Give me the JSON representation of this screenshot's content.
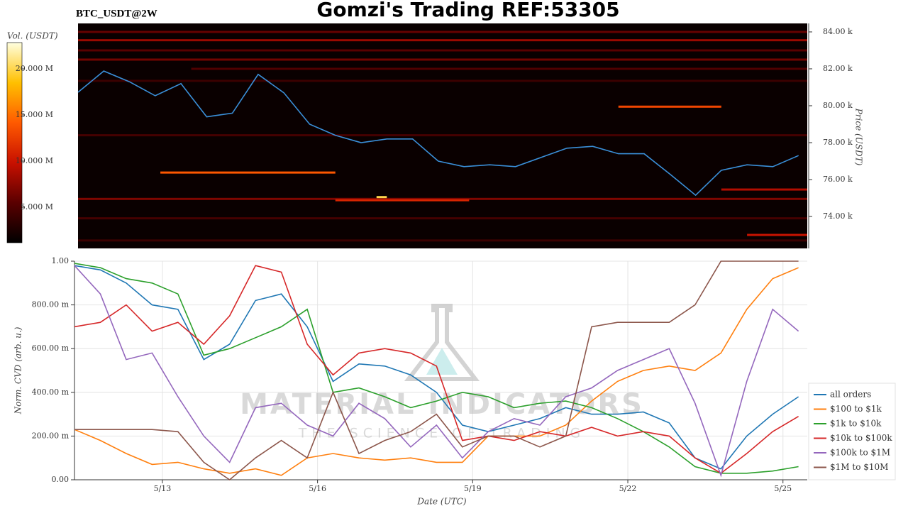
{
  "chart_data": [
    {
      "type": "heatmap",
      "title": "Gomzi's Trading REF:53305",
      "symbol": "BTC_USDT@2W",
      "y_label": "Price (USDT)",
      "colorbar_label": "Vol. (USDT)",
      "xlim": [
        11.3,
        25.47
      ],
      "ylim": [
        72270,
        84460
      ],
      "yticks": [
        {
          "value": 74000,
          "label": "74.00 k"
        },
        {
          "value": 76000,
          "label": "76.00 k"
        },
        {
          "value": 78000,
          "label": "78.00 k"
        },
        {
          "value": 80000,
          "label": "80.00 k"
        },
        {
          "value": 82000,
          "label": "82.00 k"
        },
        {
          "value": 84000,
          "label": "84.00 k"
        }
      ],
      "vlim": [
        1150000,
        22850000
      ],
      "vticks": [
        {
          "value": 5000000,
          "label": "5.000 M"
        },
        {
          "value": 10000000,
          "label": "10.000 M"
        },
        {
          "value": 15000000,
          "label": "15.000 M"
        },
        {
          "value": 20000000,
          "label": "20.000 M"
        }
      ],
      "colorscale": [
        "#000000",
        "#5a0000",
        "#c81000",
        "#ff5a00",
        "#ffc000",
        "#ffffe0"
      ],
      "background": "#0a0000",
      "levels": [
        {
          "price": 84000,
          "start": 11.3,
          "end": 25.47,
          "volume": 6000000
        },
        {
          "price": 83550,
          "start": 11.3,
          "end": 25.47,
          "volume": 8000000
        },
        {
          "price": 83000,
          "start": 11.3,
          "end": 25.47,
          "volume": 5500000
        },
        {
          "price": 82500,
          "start": 11.3,
          "end": 25.47,
          "volume": 6500000
        },
        {
          "price": 82000,
          "start": 13.5,
          "end": 25.47,
          "volume": 5000000
        },
        {
          "price": 81350,
          "start": 11.3,
          "end": 25.47,
          "volume": 4000000
        },
        {
          "price": 79950,
          "start": 21.8,
          "end": 23.8,
          "volume": 13000000
        },
        {
          "price": 78400,
          "start": 11.3,
          "end": 25.47,
          "volume": 4500000
        },
        {
          "price": 76380,
          "start": 12.9,
          "end": 16.3,
          "volume": 14000000
        },
        {
          "price": 74950,
          "start": 11.3,
          "end": 25.47,
          "volume": 7000000
        },
        {
          "price": 74880,
          "start": 16.3,
          "end": 18.9,
          "volume": 11000000
        },
        {
          "price": 75460,
          "start": 23.8,
          "end": 25.47,
          "volume": 9000000
        },
        {
          "price": 73900,
          "start": 11.3,
          "end": 25.47,
          "volume": 4500000
        },
        {
          "price": 73000,
          "start": 24.3,
          "end": 25.47,
          "volume": 10000000
        },
        {
          "price": 72700,
          "start": 11.3,
          "end": 25.47,
          "volume": 4000000
        },
        {
          "price": 75050,
          "start": 17.1,
          "end": 17.3,
          "volume": 20000000
        }
      ],
      "price_line": {
        "color": "#3a8fd8",
        "x": [
          11.3,
          11.8,
          12.3,
          12.8,
          13.3,
          13.8,
          14.3,
          14.8,
          15.3,
          15.8,
          16.3,
          16.8,
          17.3,
          17.8,
          18.3,
          18.8,
          19.3,
          19.8,
          20.3,
          20.8,
          21.3,
          21.8,
          22.3,
          22.8,
          23.3,
          23.8,
          24.3,
          24.8,
          25.3
        ],
        "values": [
          80730,
          81880,
          81300,
          80540,
          81200,
          79400,
          79600,
          81700,
          80700,
          79000,
          78400,
          78000,
          78200,
          78200,
          77000,
          76700,
          76800,
          76700,
          77200,
          77700,
          77800,
          77400,
          77400,
          76300,
          75150,
          76500,
          76800,
          76700,
          77300
        ]
      }
    },
    {
      "type": "line",
      "x_label": "Date (UTC)",
      "y_label": "Norm. CVD (arb. u.)",
      "watermark": [
        "MATERIAL INDICATORS",
        "THE SCIENCE OF TRADING"
      ],
      "xlim": [
        11.3,
        25.47
      ],
      "xticks": [
        {
          "value": 13,
          "label": "5/13"
        },
        {
          "value": 16,
          "label": "5/16"
        },
        {
          "value": 19,
          "label": "5/19"
        },
        {
          "value": 22,
          "label": "5/22"
        },
        {
          "value": 25,
          "label": "5/25"
        }
      ],
      "ylim": [
        0,
        1
      ],
      "yticks": [
        {
          "value": 0,
          "label": "0.00"
        },
        {
          "value": 0.2,
          "label": "200.00 m"
        },
        {
          "value": 0.4,
          "label": "400.00 m"
        },
        {
          "value": 0.6,
          "label": "600.00 m"
        },
        {
          "value": 0.8,
          "label": "800.00 m"
        },
        {
          "value": 1,
          "label": "1.00"
        }
      ],
      "grid": true,
      "legend": "lower-right",
      "x": [
        11.3,
        11.8,
        12.3,
        12.8,
        13.3,
        13.8,
        14.3,
        14.8,
        15.3,
        15.8,
        16.3,
        16.8,
        17.3,
        17.8,
        18.3,
        18.8,
        19.3,
        19.8,
        20.3,
        20.8,
        21.3,
        21.8,
        22.3,
        22.8,
        23.3,
        23.8,
        24.3,
        24.8,
        25.3
      ],
      "series": [
        {
          "name": "all orders",
          "color": "#1f77b4",
          "values": [
            0.98,
            0.96,
            0.9,
            0.8,
            0.78,
            0.55,
            0.62,
            0.82,
            0.85,
            0.7,
            0.45,
            0.53,
            0.52,
            0.48,
            0.4,
            0.25,
            0.22,
            0.25,
            0.28,
            0.33,
            0.3,
            0.3,
            0.31,
            0.26,
            0.1,
            0.05,
            0.2,
            0.3,
            0.38
          ]
        },
        {
          "name": "$100 to $1k",
          "color": "#ff7f0e",
          "values": [
            0.23,
            0.18,
            0.12,
            0.07,
            0.08,
            0.05,
            0.03,
            0.05,
            0.02,
            0.1,
            0.12,
            0.1,
            0.09,
            0.1,
            0.08,
            0.08,
            0.2,
            0.2,
            0.2,
            0.25,
            0.36,
            0.45,
            0.5,
            0.52,
            0.5,
            0.58,
            0.78,
            0.92,
            0.97
          ]
        },
        {
          "name": "$1k to $10k",
          "color": "#2ca02c",
          "values": [
            0.99,
            0.97,
            0.92,
            0.9,
            0.85,
            0.57,
            0.6,
            0.65,
            0.7,
            0.78,
            0.4,
            0.42,
            0.38,
            0.33,
            0.36,
            0.4,
            0.38,
            0.33,
            0.35,
            0.36,
            0.33,
            0.28,
            0.22,
            0.15,
            0.06,
            0.03,
            0.03,
            0.04,
            0.06
          ]
        },
        {
          "name": "$10k to $100k",
          "color": "#d62728",
          "values": [
            0.7,
            0.72,
            0.8,
            0.68,
            0.72,
            0.62,
            0.75,
            0.98,
            0.95,
            0.62,
            0.48,
            0.58,
            0.6,
            0.58,
            0.52,
            0.18,
            0.2,
            0.18,
            0.22,
            0.2,
            0.24,
            0.2,
            0.22,
            0.2,
            0.1,
            0.03,
            0.12,
            0.22,
            0.29
          ]
        },
        {
          "name": "$100k to $1M",
          "color": "#9467bd",
          "values": [
            0.98,
            0.85,
            0.55,
            0.58,
            0.38,
            0.2,
            0.08,
            0.33,
            0.35,
            0.25,
            0.2,
            0.35,
            0.28,
            0.15,
            0.25,
            0.1,
            0.22,
            0.28,
            0.25,
            0.38,
            0.42,
            0.5,
            0.55,
            0.6,
            0.35,
            0.02,
            0.45,
            0.78,
            0.68
          ]
        },
        {
          "name": "$1M to $10M",
          "color": "#8c564b",
          "values": [
            0.23,
            0.23,
            0.23,
            0.23,
            0.22,
            0.08,
            0,
            0.1,
            0.18,
            0.1,
            0.4,
            0.12,
            0.18,
            0.22,
            0.3,
            0.15,
            0.2,
            0.2,
            0.15,
            0.2,
            0.7,
            0.72,
            0.72,
            0.72,
            0.8,
            1,
            1,
            1,
            1
          ]
        }
      ]
    }
  ]
}
